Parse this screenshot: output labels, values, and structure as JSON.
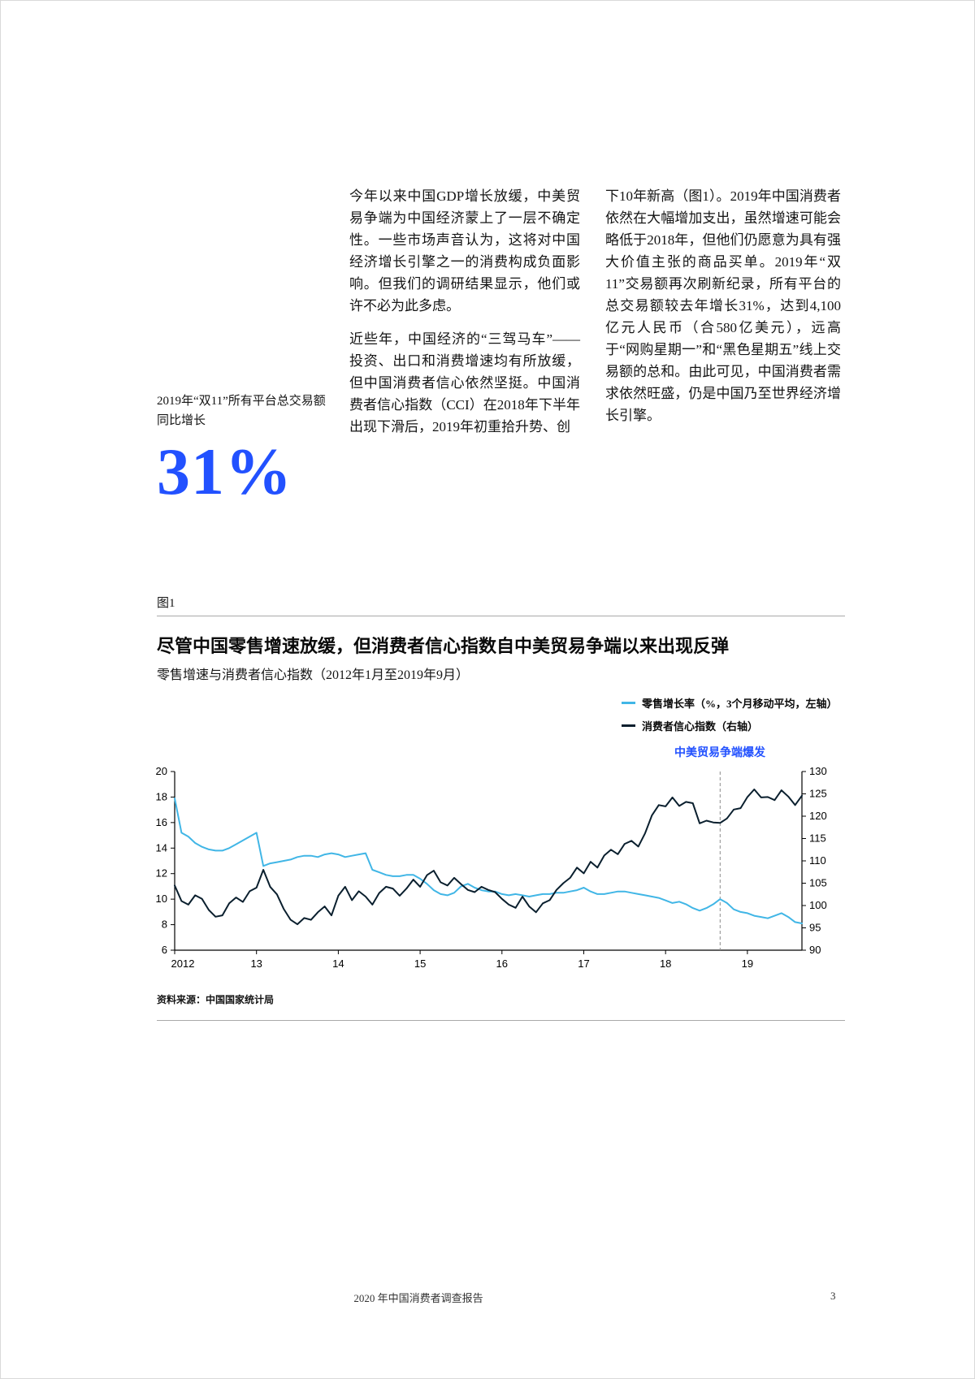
{
  "page": {
    "footer_title": "2020 年中国消费者调查报告",
    "page_number": "3"
  },
  "colors": {
    "accent": "#2251ff",
    "retail_line": "#41b6e6",
    "cci_line": "#0a1f2e",
    "dashed_line": "#8c8c8c"
  },
  "callout": {
    "lead": "2019年“双11”所有平台总交易额同比增长",
    "value": "31%"
  },
  "body": {
    "col1_p1": "今年以来中国GDP增长放缓，中美贸易争端为中国经济蒙上了一层不确定性。一些市场声音认为，这将对中国经济增长引擎之一的消费构成负面影响。但我们的调研结果显示，他们或许不必为此多虑。",
    "col1_p2": "近些年，中国经济的“三驾马车”——投资、出口和消费增速均有所放缓，但中国消费者信心依然坚挺。中国消费者信心指数（CCI）在2018年下半年出现下滑后，2019年初重拾升势、创",
    "col2_p1": "下10年新高（图1）。2019年中国消费者依然在大幅增加支出，虽然增速可能会略低于2018年，但他们仍愿意为具有强大价值主张的商品买单。2019年“双11”交易额再次刷新纪录，所有平台的总交易额较去年增长31%，达到4,100亿元人民币（合580亿美元），远高于“网购星期一”和“黑色星期五”线上交易额的总和。由此可见，中国消费者需求依然旺盛，仍是中国乃至世界经济增长引擎。"
  },
  "figure": {
    "label": "图1",
    "title": "尽管中国零售增速放缓，但消费者信心指数自中美贸易争端以来出现反弹",
    "subtitle": "零售增速与消费者信心指数（2012年1月至2019年9月）",
    "source": "资料来源：中国国家统计局"
  },
  "chart_data": {
    "type": "line",
    "title": "尽管中国零售增速放缓，但消费者信心指数自中美贸易争端以来出现反弹",
    "subtitle": "零售增速与消费者信心指数（2012年1月至2019年9月）",
    "x_start": "2012-01",
    "x_end": "2019-09",
    "x_tick_labels": [
      "2012",
      "13",
      "14",
      "15",
      "16",
      "17",
      "18",
      "19"
    ],
    "left_axis": {
      "label": "零售增长率（%）",
      "min": 6,
      "max": 20,
      "ticks": [
        6,
        8,
        10,
        12,
        14,
        16,
        18,
        20
      ]
    },
    "right_axis": {
      "label": "消费者信心指数",
      "min": 90,
      "max": 130,
      "ticks": [
        90,
        95,
        100,
        105,
        110,
        115,
        120,
        125,
        130
      ]
    },
    "annotation": {
      "label": "中美贸易争端爆发",
      "x_index": 80
    },
    "series": [
      {
        "name": "零售增长率（%，3个月移动平均，左轴）",
        "axis": "left",
        "color": "#41b6e6",
        "values": [
          17.9,
          15.2,
          14.9,
          14.4,
          14.1,
          13.9,
          13.8,
          13.8,
          14.0,
          14.3,
          14.6,
          14.9,
          15.2,
          12.6,
          12.8,
          12.9,
          13.0,
          13.1,
          13.3,
          13.4,
          13.4,
          13.3,
          13.5,
          13.6,
          13.5,
          13.3,
          13.4,
          13.5,
          13.6,
          12.3,
          12.1,
          11.9,
          11.8,
          11.8,
          11.9,
          11.9,
          11.6,
          11.2,
          10.7,
          10.4,
          10.3,
          10.5,
          11.0,
          11.2,
          10.9,
          10.7,
          10.6,
          10.6,
          10.4,
          10.3,
          10.4,
          10.3,
          10.2,
          10.3,
          10.4,
          10.4,
          10.5,
          10.5,
          10.6,
          10.7,
          10.9,
          10.6,
          10.4,
          10.4,
          10.5,
          10.6,
          10.6,
          10.5,
          10.4,
          10.3,
          10.2,
          10.1,
          9.9,
          9.7,
          9.8,
          9.6,
          9.3,
          9.1,
          9.3,
          9.6,
          10.0,
          9.7,
          9.2,
          9.0,
          8.9,
          8.7,
          8.6,
          8.5,
          8.7,
          8.9,
          8.6,
          8.2,
          8.1
        ]
      },
      {
        "name": "消费者信心指数（右轴）",
        "axis": "right",
        "color": "#0a1f2e",
        "values": [
          104.5,
          101.0,
          100.2,
          102.3,
          101.5,
          99.0,
          97.5,
          97.8,
          100.5,
          101.8,
          100.8,
          103.2,
          104.0,
          108.0,
          104.2,
          102.5,
          99.2,
          96.8,
          95.8,
          97.2,
          96.8,
          98.5,
          99.8,
          97.8,
          102.2,
          104.2,
          101.2,
          103.2,
          102.0,
          100.2,
          102.8,
          104.2,
          103.8,
          102.2,
          103.8,
          105.8,
          104.2,
          106.8,
          107.8,
          105.2,
          104.5,
          106.2,
          104.8,
          103.5,
          103.0,
          104.2,
          103.5,
          103.0,
          101.5,
          100.2,
          99.5,
          102.0,
          99.8,
          98.5,
          100.5,
          101.2,
          103.5,
          105.0,
          106.2,
          108.5,
          107.2,
          109.8,
          108.5,
          111.2,
          112.5,
          111.5,
          113.8,
          114.5,
          113.2,
          116.2,
          120.2,
          122.5,
          122.2,
          124.2,
          122.3,
          123.2,
          122.9,
          118.4,
          119.0,
          118.6,
          118.5,
          119.5,
          121.5,
          121.8,
          124.3,
          126.0,
          124.2,
          124.3,
          123.6,
          125.8,
          124.4,
          122.5,
          124.6
        ]
      }
    ]
  }
}
